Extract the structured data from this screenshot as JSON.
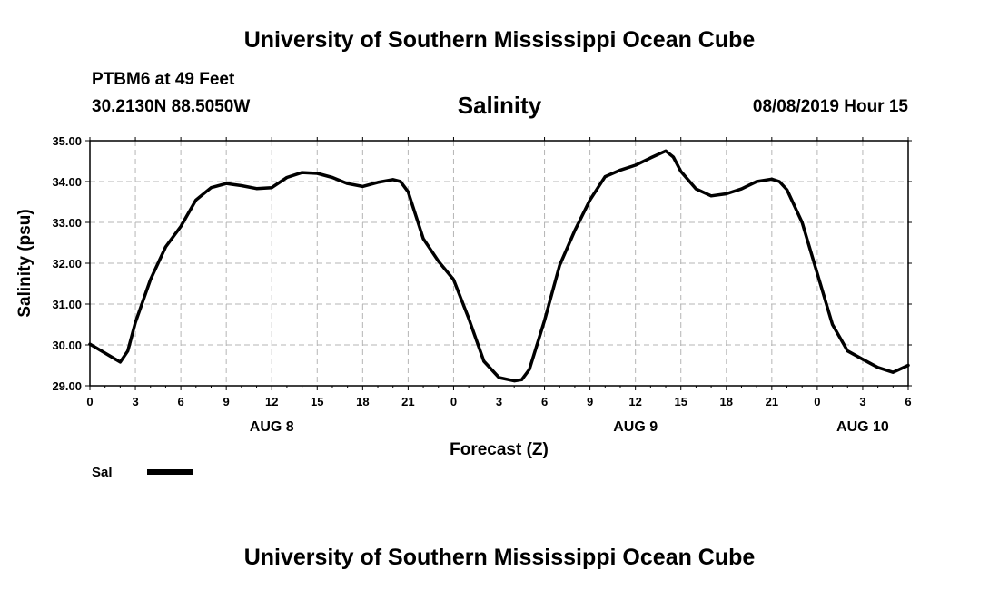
{
  "header": {
    "title": "University of Southern Mississippi Ocean Cube",
    "station": "PTBM6 at 49 Feet",
    "coordinates": "30.2130N 88.5050W",
    "timestamp": "08/08/2019 Hour 15"
  },
  "footer": {
    "title": "University of Southern Mississippi Ocean Cube"
  },
  "chart_data": {
    "type": "line",
    "title": "Salinity",
    "xlabel": "Forecast (Z)",
    "ylabel": "Salinity (psu)",
    "x_unit": "hours (Z) from 00Z AUG 8",
    "xlim": [
      0,
      54
    ],
    "ylim": [
      29.0,
      35.0
    ],
    "y_ticks": [
      "29.00",
      "30.00",
      "31.00",
      "32.00",
      "33.00",
      "34.00",
      "35.00"
    ],
    "x_ticks": [
      {
        "h": 0,
        "label": "0"
      },
      {
        "h": 3,
        "label": "3"
      },
      {
        "h": 6,
        "label": "6"
      },
      {
        "h": 9,
        "label": "9"
      },
      {
        "h": 12,
        "label": "12"
      },
      {
        "h": 15,
        "label": "15"
      },
      {
        "h": 18,
        "label": "18"
      },
      {
        "h": 21,
        "label": "21"
      },
      {
        "h": 24,
        "label": "0"
      },
      {
        "h": 27,
        "label": "3"
      },
      {
        "h": 30,
        "label": "6"
      },
      {
        "h": 33,
        "label": "9"
      },
      {
        "h": 36,
        "label": "12"
      },
      {
        "h": 39,
        "label": "15"
      },
      {
        "h": 42,
        "label": "18"
      },
      {
        "h": 45,
        "label": "21"
      },
      {
        "h": 48,
        "label": "0"
      },
      {
        "h": 51,
        "label": "3"
      },
      {
        "h": 54,
        "label": "6"
      }
    ],
    "day_labels": [
      {
        "h": 12,
        "label": "AUG 8"
      },
      {
        "h": 36,
        "label": "AUG 9"
      },
      {
        "h": 51,
        "label": "AUG 10"
      }
    ],
    "grid": true,
    "legend_position": "bottom-left",
    "series": [
      {
        "name": "Sal",
        "color": "#000000",
        "x": [
          0,
          1,
          2,
          2.5,
          3,
          4,
          5,
          6,
          7,
          8,
          9,
          10,
          11,
          12,
          13,
          14,
          15,
          16,
          17,
          18,
          19,
          20,
          20.5,
          21,
          22,
          23,
          24,
          25,
          26,
          27,
          28,
          28.5,
          29,
          30,
          31,
          32,
          33,
          34,
          35,
          36,
          37,
          38,
          38.5,
          39,
          40,
          41,
          42,
          43,
          44,
          45,
          45.5,
          46,
          47,
          48,
          49,
          50,
          51,
          52,
          53,
          54
        ],
        "y": [
          30.02,
          29.8,
          29.58,
          29.85,
          30.55,
          31.6,
          32.4,
          32.9,
          33.55,
          33.85,
          33.95,
          33.9,
          33.83,
          33.85,
          34.1,
          34.22,
          34.2,
          34.1,
          33.95,
          33.88,
          33.98,
          34.05,
          34.0,
          33.75,
          32.6,
          32.05,
          31.6,
          30.65,
          29.6,
          29.2,
          29.12,
          29.15,
          29.4,
          30.6,
          31.95,
          32.8,
          33.55,
          34.12,
          34.28,
          34.4,
          34.58,
          34.75,
          34.6,
          34.25,
          33.82,
          33.65,
          33.7,
          33.82,
          34.0,
          34.06,
          34.0,
          33.8,
          33.0,
          31.75,
          30.5,
          29.85,
          29.65,
          29.45,
          29.33,
          29.5
        ]
      }
    ]
  }
}
